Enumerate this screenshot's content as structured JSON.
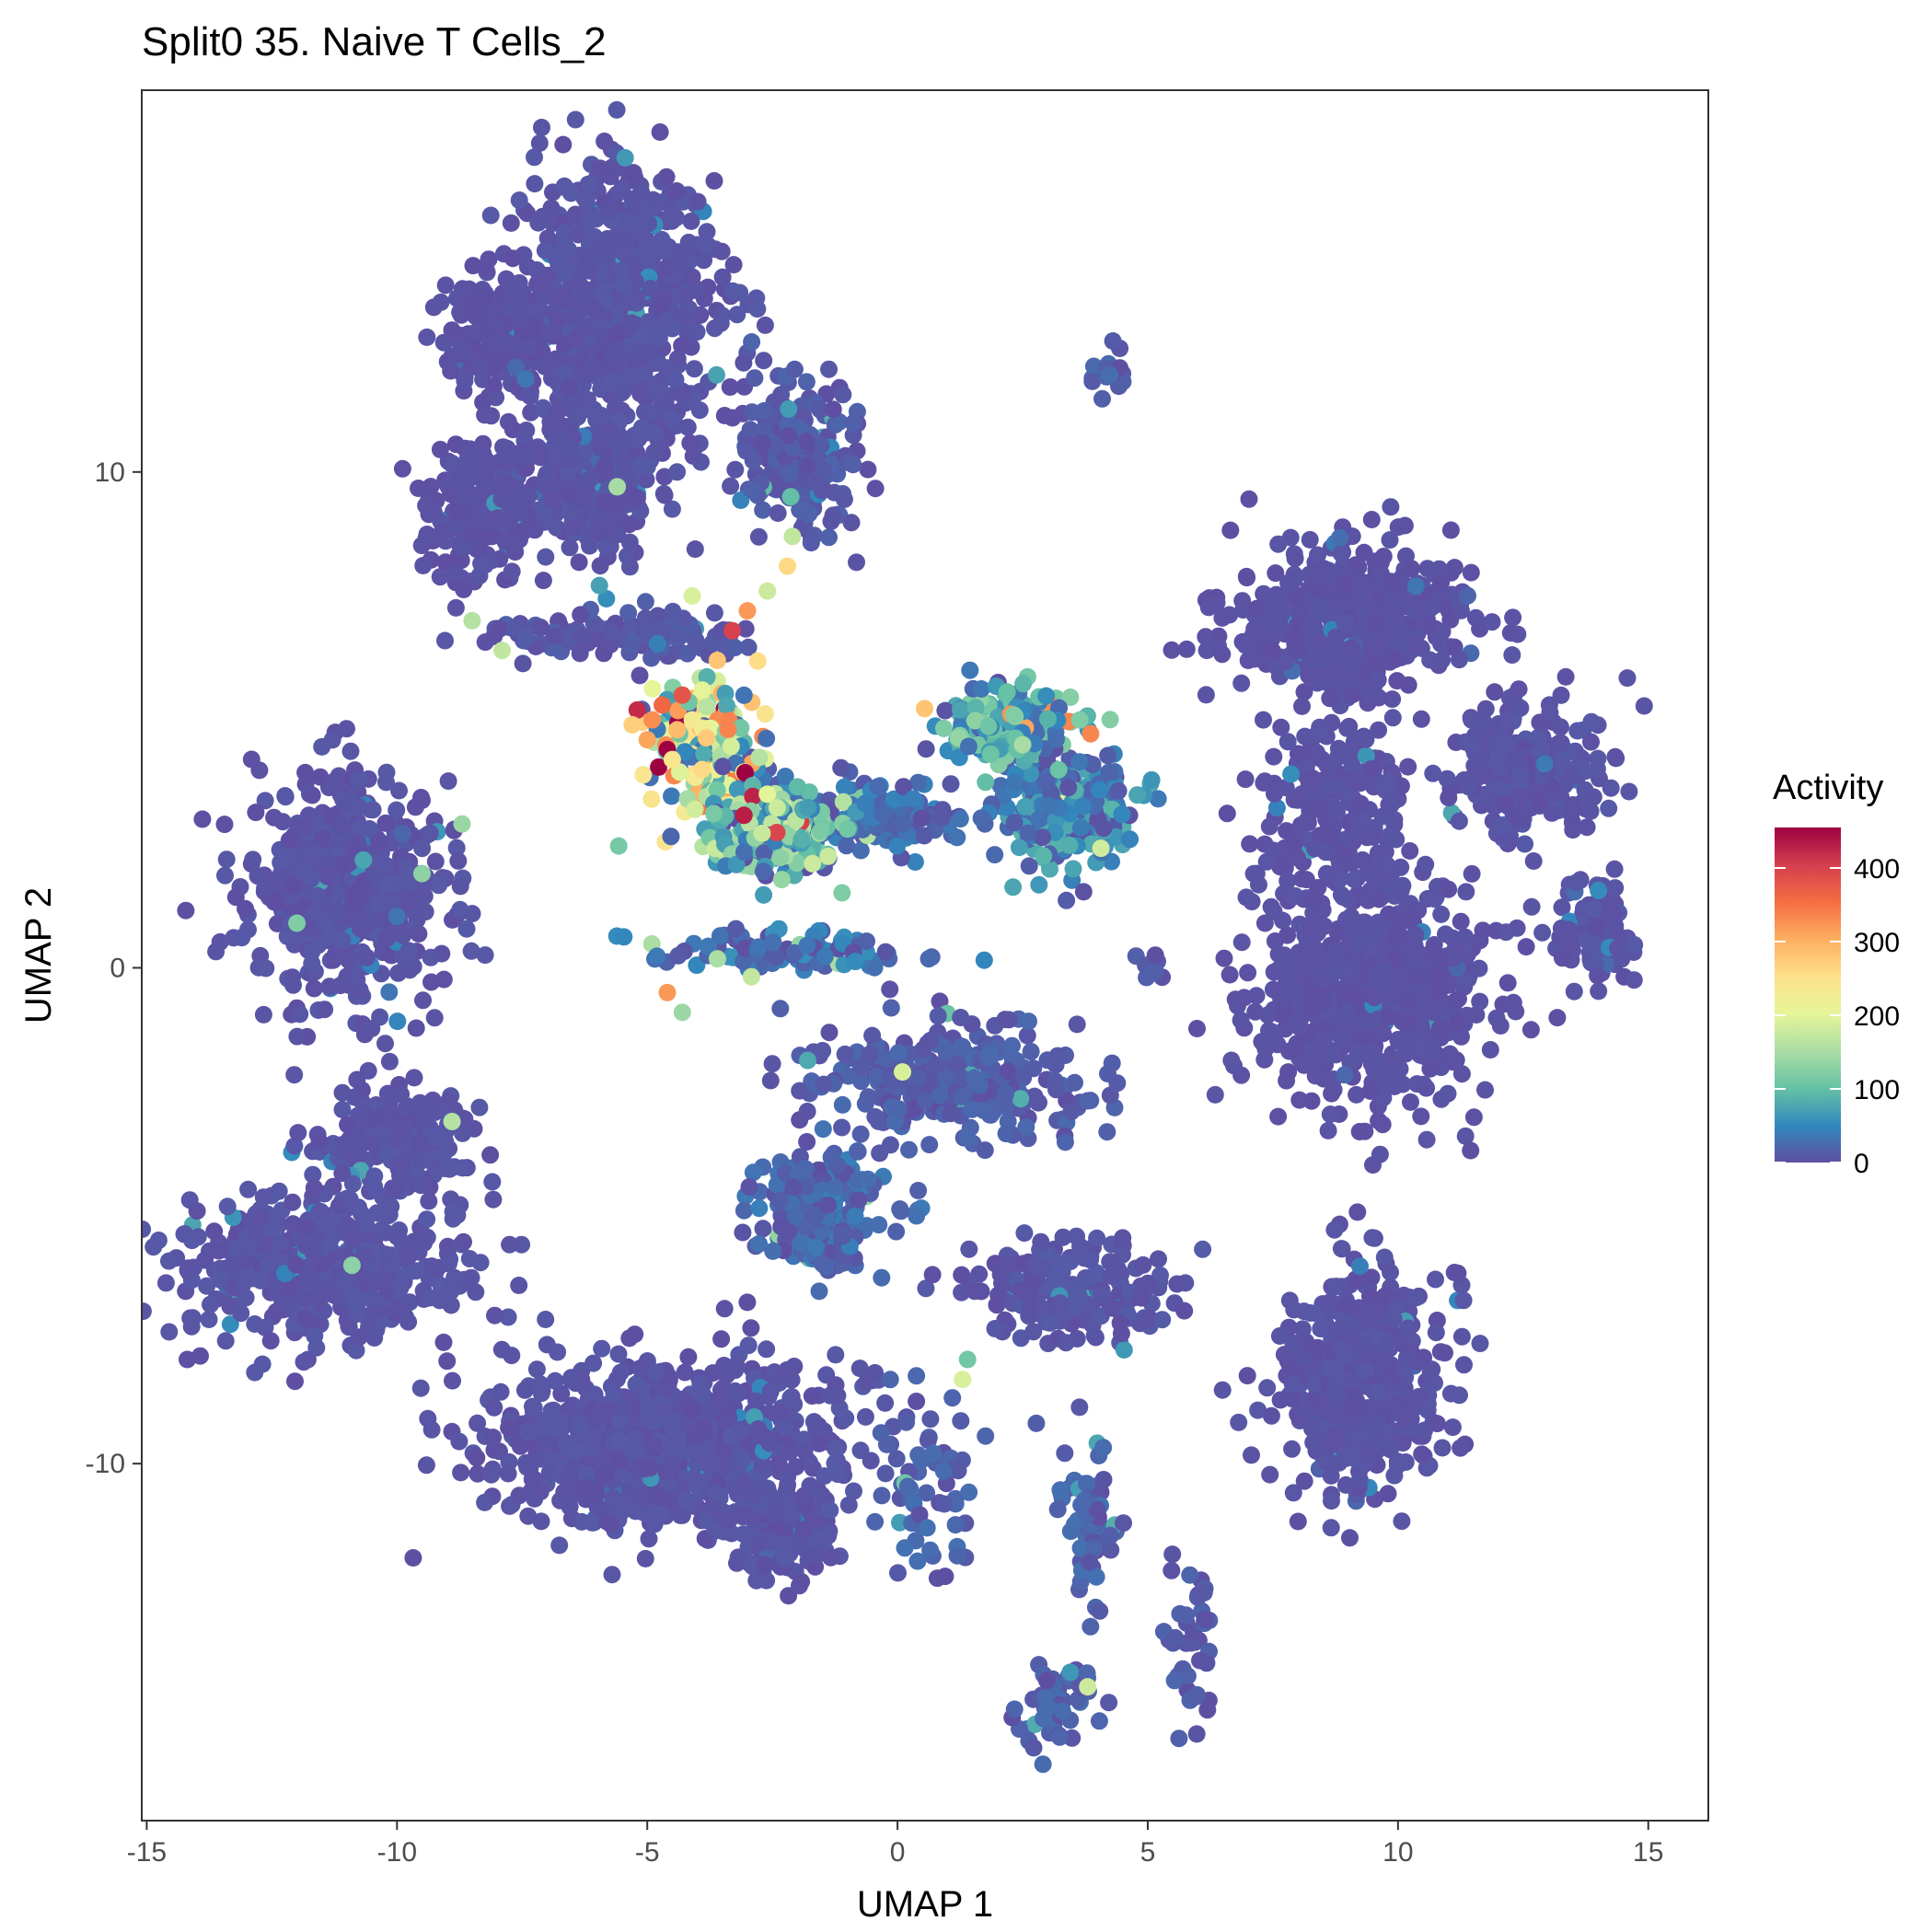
{
  "chart_data": {
    "type": "scatter",
    "title": "Split0 35. Naive T Cells_2",
    "xlabel": "UMAP 1",
    "ylabel": "UMAP 2",
    "xlim": [
      -15.1,
      16.2
    ],
    "ylim": [
      -17.2,
      17.7
    ],
    "x_ticks": [
      -15,
      -10,
      -5,
      0,
      5,
      10,
      15
    ],
    "x_tick_labels": [
      "-15",
      "-10",
      "-5",
      "0",
      "5",
      "10",
      "15"
    ],
    "y_ticks": [
      -10,
      0,
      10
    ],
    "y_tick_labels": [
      "-10",
      "0",
      "10"
    ],
    "grid": false,
    "legend": {
      "title": "Activity",
      "placement": "right",
      "range": [
        0,
        455
      ],
      "ticks": [
        0,
        100,
        200,
        300,
        400
      ],
      "tick_labels": [
        "0",
        "100",
        "200",
        "300",
        "400"
      ],
      "palette": [
        "#5E4FA2",
        "#3288BD",
        "#66C2A5",
        "#ABDDA4",
        "#E6F598",
        "#FEE08B",
        "#FDAE61",
        "#F46D43",
        "#D53E4F",
        "#9E0142"
      ]
    },
    "background_color": "#5E4FA2",
    "clusters": [
      {
        "x": -5.5,
        "y": 13.5,
        "sx": 1.2,
        "sy": 2.0,
        "n": 700,
        "v": 5
      },
      {
        "x": -7.8,
        "y": 12.8,
        "sx": 0.8,
        "sy": 0.8,
        "n": 220,
        "v": 3
      },
      {
        "x": -6.2,
        "y": 9.8,
        "sx": 1.0,
        "sy": 1.0,
        "n": 320,
        "v": 5
      },
      {
        "x": -8.5,
        "y": 9.3,
        "sx": 0.7,
        "sy": 1.0,
        "n": 180,
        "v": 3
      },
      {
        "x": -2.0,
        "y": 10.3,
        "sx": 0.8,
        "sy": 1.0,
        "n": 220,
        "v": 10
      },
      {
        "x": -5.6,
        "y": 6.7,
        "sx": 1.8,
        "sy": 0.3,
        "n": 140,
        "v": 8
      },
      {
        "x": -11.0,
        "y": 1.6,
        "sx": 1.3,
        "sy": 1.5,
        "n": 550,
        "v": 5
      },
      {
        "x": -11.5,
        "y": -6.0,
        "sx": 1.8,
        "sy": 1.0,
        "n": 500,
        "v": 5
      },
      {
        "x": -10.0,
        "y": -3.5,
        "sx": 1.0,
        "sy": 0.8,
        "n": 180,
        "v": 5
      },
      {
        "x": -4.7,
        "y": -9.6,
        "sx": 2.3,
        "sy": 1.1,
        "n": 900,
        "v": 5
      },
      {
        "x": -2.3,
        "y": -11.3,
        "sx": 0.8,
        "sy": 0.7,
        "n": 150,
        "v": 5
      },
      {
        "x": -1.5,
        "y": -4.8,
        "sx": 0.8,
        "sy": 0.8,
        "n": 230,
        "v": 22
      },
      {
        "x": 1.0,
        "y": -2.3,
        "sx": 1.8,
        "sy": 0.8,
        "n": 300,
        "v": 12
      },
      {
        "x": 3.5,
        "y": -6.5,
        "sx": 1.2,
        "sy": 0.7,
        "n": 200,
        "v": 6
      },
      {
        "x": 9.0,
        "y": 7.0,
        "sx": 1.6,
        "sy": 1.0,
        "n": 500,
        "v": 3
      },
      {
        "x": 12.5,
        "y": 4.0,
        "sx": 1.0,
        "sy": 1.0,
        "n": 280,
        "v": 5
      },
      {
        "x": 9.5,
        "y": -0.5,
        "sx": 1.5,
        "sy": 1.5,
        "n": 650,
        "v": 3
      },
      {
        "x": 8.7,
        "y": 3.2,
        "sx": 1.0,
        "sy": 1.2,
        "n": 220,
        "v": 3
      },
      {
        "x": 14.0,
        "y": 0.8,
        "sx": 0.5,
        "sy": 0.7,
        "n": 110,
        "v": 5
      },
      {
        "x": 9.3,
        "y": -8.3,
        "sx": 1.1,
        "sy": 1.5,
        "n": 500,
        "v": 4
      },
      {
        "x": 3.4,
        "y": 3.2,
        "sx": 0.8,
        "sy": 0.7,
        "n": 260,
        "v": 45
      },
      {
        "x": 2.2,
        "y": 4.8,
        "sx": 0.8,
        "sy": 0.6,
        "n": 180,
        "v": 70
      },
      {
        "x": -1.0,
        "y": 3.0,
        "sx": 1.8,
        "sy": 0.5,
        "n": 160,
        "v": 25
      },
      {
        "x": -3.8,
        "y": 4.5,
        "sx": 0.7,
        "sy": 0.9,
        "n": 200,
        "v": 175
      },
      {
        "x": -2.5,
        "y": 2.7,
        "sx": 0.9,
        "sy": 0.6,
        "n": 180,
        "v": 95
      },
      {
        "x": -2.2,
        "y": 0.3,
        "sx": 1.7,
        "sy": 0.3,
        "n": 100,
        "v": 30
      },
      {
        "x": 0.6,
        "y": -10.6,
        "sx": 0.7,
        "sy": 1.3,
        "n": 60,
        "v": 15
      },
      {
        "x": 3.8,
        "y": -11.2,
        "sx": 0.4,
        "sy": 1.0,
        "n": 70,
        "v": 15
      },
      {
        "x": 3.2,
        "y": -14.8,
        "sx": 0.5,
        "sy": 0.7,
        "n": 50,
        "v": 15
      },
      {
        "x": 5.8,
        "y": -14.0,
        "sx": 0.4,
        "sy": 1.3,
        "n": 40,
        "v": 10
      },
      {
        "x": 4.3,
        "y": 12.0,
        "sx": 0.3,
        "sy": 0.4,
        "n": 18,
        "v": 15
      },
      {
        "x": 5.0,
        "y": -0.1,
        "sx": 0.2,
        "sy": 0.2,
        "n": 10,
        "v": 8
      }
    ],
    "hot_points": [
      {
        "x": -5.2,
        "y": 5.2,
        "v": 420
      },
      {
        "x": -4.6,
        "y": 4.4,
        "v": 455
      },
      {
        "x": -4.3,
        "y": 5.5,
        "v": 380
      },
      {
        "x": -4.9,
        "y": 5.0,
        "v": 330
      },
      {
        "x": -5.0,
        "y": 4.6,
        "v": 310
      },
      {
        "x": -4.7,
        "y": 5.3,
        "v": 360
      },
      {
        "x": -4.4,
        "y": 4.8,
        "v": 290
      },
      {
        "x": -3.3,
        "y": 6.8,
        "v": 400
      },
      {
        "x": -3.0,
        "y": 7.2,
        "v": 320
      },
      {
        "x": -3.6,
        "y": 6.2,
        "v": 280
      },
      {
        "x": -2.2,
        "y": 8.1,
        "v": 260
      },
      {
        "x": -4.6,
        "y": -0.5,
        "v": 320
      },
      {
        "x": -5.3,
        "y": 4.9,
        "v": 270
      },
      {
        "x": -4.5,
        "y": 4.2,
        "v": 240
      },
      {
        "x": -4.1,
        "y": 5.0,
        "v": 230
      },
      {
        "x": -2.6,
        "y": 7.6,
        "v": 180
      },
      {
        "x": -3.9,
        "y": 5.6,
        "v": 200
      },
      {
        "x": 0.1,
        "y": -2.1,
        "v": 190
      },
      {
        "x": -10.9,
        "y": -6.0,
        "v": 130
      },
      {
        "x": -8.9,
        "y": -3.1,
        "v": 160
      },
      {
        "x": 1.3,
        "y": -8.3,
        "v": 190
      },
      {
        "x": 3.8,
        "y": -14.5,
        "v": 180
      },
      {
        "x": -8.5,
        "y": 7.0,
        "v": 160
      },
      {
        "x": -7.9,
        "y": 6.4,
        "v": 170
      },
      {
        "x": -5.6,
        "y": 9.7,
        "v": 150
      },
      {
        "x": -2.6,
        "y": 3.5,
        "v": 200
      },
      {
        "x": -1.7,
        "y": 2.1,
        "v": 180
      },
      {
        "x": -12.0,
        "y": 0.9,
        "v": 120
      },
      {
        "x": -9.5,
        "y": 1.9,
        "v": 130
      },
      {
        "x": -8.7,
        "y": 2.9,
        "v": 140
      },
      {
        "x": -2.1,
        "y": 8.7,
        "v": 170
      },
      {
        "x": -4.1,
        "y": 7.5,
        "v": 190
      },
      {
        "x": 2.5,
        "y": 4.5,
        "v": 150
      },
      {
        "x": -4.3,
        "y": -0.9,
        "v": 140
      },
      {
        "x": 1.4,
        "y": -7.9,
        "v": 110
      },
      {
        "x": -1.0,
        "y": 2.8,
        "v": 110
      }
    ]
  }
}
